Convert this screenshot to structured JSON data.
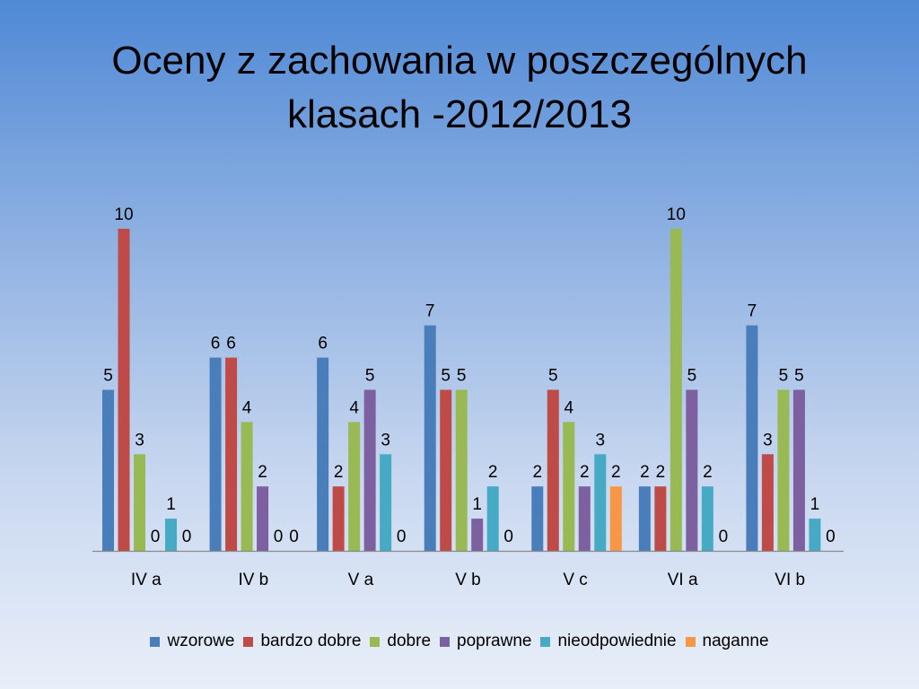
{
  "slide": {
    "title_line1": "Oceny z zachowania w poszczególnych",
    "title_line2": "klasach -2012/2013"
  },
  "chart_data": {
    "type": "bar",
    "title": "Oceny z zachowania w poszczególnych klasach -2012/2013",
    "categories": [
      "IV a",
      "IV b",
      "V a",
      "V b",
      "V c",
      "VI a",
      "VI b"
    ],
    "series": [
      {
        "name": "wzorowe",
        "color": "#4a7ebb",
        "values": [
          5,
          6,
          6,
          7,
          2,
          2,
          7
        ]
      },
      {
        "name": "bardzo dobre",
        "color": "#be4b48",
        "values": [
          10,
          6,
          2,
          5,
          5,
          2,
          3
        ]
      },
      {
        "name": "dobre",
        "color": "#98b954",
        "values": [
          3,
          4,
          4,
          5,
          4,
          10,
          5
        ]
      },
      {
        "name": "poprawne",
        "color": "#7d60a0",
        "values": [
          0,
          2,
          5,
          1,
          2,
          5,
          5
        ]
      },
      {
        "name": "nieodpowiednie",
        "color": "#46aac5",
        "values": [
          1,
          0,
          3,
          2,
          3,
          2,
          1
        ]
      },
      {
        "name": "naganne",
        "color": "#f79646",
        "values": [
          0,
          0,
          0,
          0,
          2,
          0,
          0
        ]
      }
    ],
    "ylim": [
      0,
      10
    ],
    "grid": false,
    "legend_position": "bottom",
    "data_labels": true
  }
}
